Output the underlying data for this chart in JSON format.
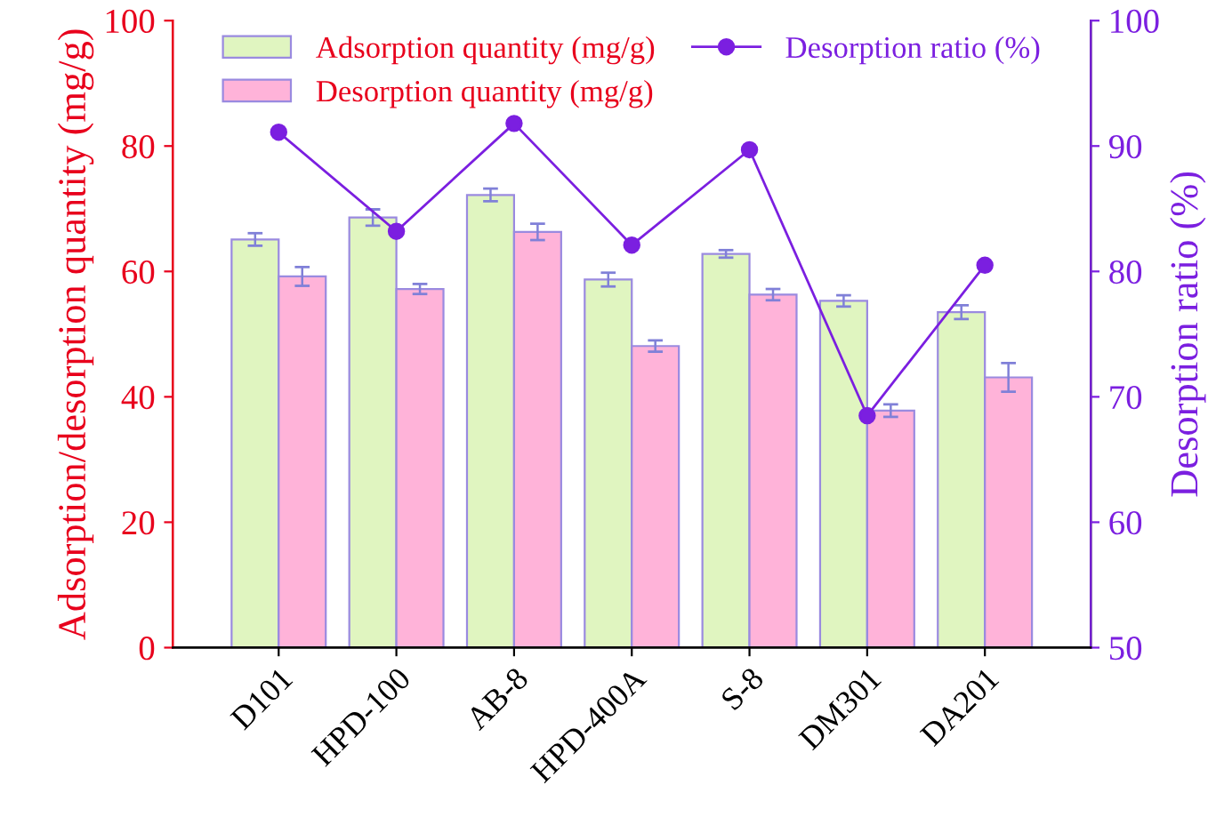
{
  "chart_data": {
    "type": "bar",
    "categories": [
      "D101",
      "HPD-100",
      "AB-8",
      "HPD-400A",
      "S-8",
      "DM301",
      "DA201"
    ],
    "ylabel": "Adsorption/desorption quantity (mg/g)",
    "y2label": "Desorption ratio (%)",
    "ylim": [
      0,
      100
    ],
    "yticks": [
      0,
      20,
      40,
      60,
      80,
      100
    ],
    "y2lim": [
      50,
      100
    ],
    "y2ticks": [
      50,
      60,
      70,
      80,
      90,
      100
    ],
    "legend": "top",
    "grid": false,
    "series": [
      {
        "name": "Adsorption quantity (mg/g)",
        "color": "#e0f5c0",
        "values": [
          65.1,
          68.6,
          72.2,
          58.7,
          62.8,
          55.3,
          53.5
        ],
        "errors": [
          1.0,
          1.3,
          1.0,
          1.1,
          0.6,
          0.9,
          1.1
        ]
      },
      {
        "name": "Desorption quantity (mg/g)",
        "color": "#ffb3d9",
        "values": [
          59.2,
          57.2,
          66.3,
          48.1,
          56.3,
          37.8,
          43.1
        ],
        "errors": [
          1.5,
          0.8,
          1.3,
          0.9,
          0.9,
          1.0,
          2.3
        ]
      },
      {
        "name": "Desorption ratio (%)",
        "type": "line",
        "axis": "y2",
        "color": "#7b1fe0",
        "marker": "circle",
        "line_style": "solid",
        "values": [
          91.1,
          83.2,
          91.8,
          82.1,
          89.7,
          68.5,
          80.5
        ]
      }
    ]
  }
}
